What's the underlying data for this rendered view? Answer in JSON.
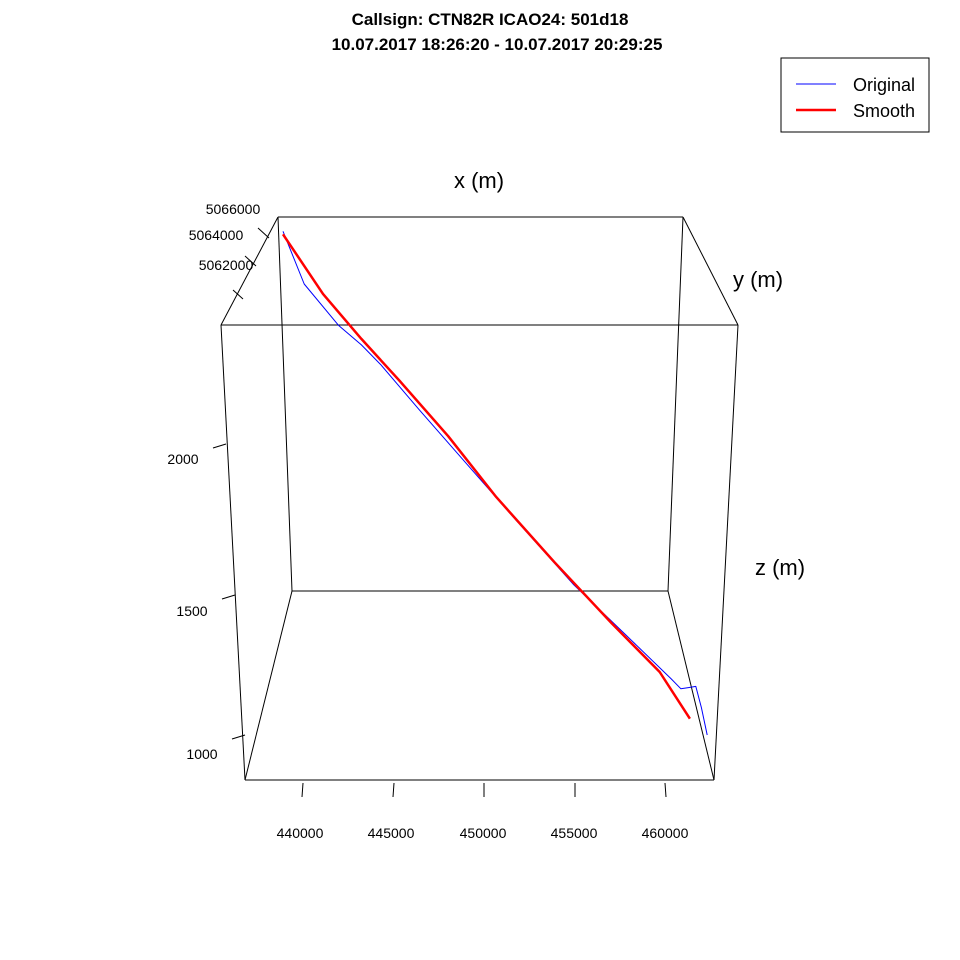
{
  "chart_data": {
    "type": "line",
    "title": "Callsign: CTN82R   ICAO24: 501d18",
    "subtitle": "10.07.2017 18:26:20 - 10.07.2017 20:29:25",
    "xlabel": "x (m)",
    "ylabel": "y (m)",
    "zlabel": "z (m)",
    "legend_position": "top-right",
    "x_ticks": [
      "440000",
      "445000",
      "450000",
      "455000",
      "460000"
    ],
    "y_ticks": [
      "5062000",
      "5064000",
      "5066000"
    ],
    "z_ticks": [
      "1000",
      "1500",
      "2000"
    ],
    "series": [
      {
        "name": "Original",
        "color": "#0000ff",
        "points": [
          {
            "x": 438900,
            "y": 5066000,
            "z": 2720
          },
          {
            "x": 440000,
            "y": 5065600,
            "z": 2550
          },
          {
            "x": 441800,
            "y": 5065100,
            "z": 2420
          },
          {
            "x": 443000,
            "y": 5064700,
            "z": 2360
          },
          {
            "x": 444000,
            "y": 5064300,
            "z": 2300
          },
          {
            "x": 446000,
            "y": 5063500,
            "z": 2160
          },
          {
            "x": 448500,
            "y": 5062600,
            "z": 1990
          },
          {
            "x": 451000,
            "y": 5061700,
            "z": 1820
          },
          {
            "x": 454000,
            "y": 5060700,
            "z": 1620
          },
          {
            "x": 457000,
            "y": 5059600,
            "z": 1450
          },
          {
            "x": 459100,
            "y": 5058900,
            "z": 1330
          },
          {
            "x": 459600,
            "y": 5058700,
            "z": 1300
          },
          {
            "x": 460000,
            "y": 5058600,
            "z": 1305
          },
          {
            "x": 460400,
            "y": 5058550,
            "z": 1310
          },
          {
            "x": 460700,
            "y": 5058500,
            "z": 1240
          },
          {
            "x": 461000,
            "y": 5058400,
            "z": 1150
          }
        ]
      },
      {
        "name": "Smooth",
        "color": "#ff0000",
        "points": [
          {
            "x": 438900,
            "y": 5066000,
            "z": 2710
          },
          {
            "x": 441000,
            "y": 5065400,
            "z": 2520
          },
          {
            "x": 443000,
            "y": 5064700,
            "z": 2380
          },
          {
            "x": 445000,
            "y": 5063900,
            "z": 2250
          },
          {
            "x": 447500,
            "y": 5063000,
            "z": 2080
          },
          {
            "x": 450000,
            "y": 5062100,
            "z": 1890
          },
          {
            "x": 453000,
            "y": 5061000,
            "z": 1690
          },
          {
            "x": 456000,
            "y": 5059900,
            "z": 1500
          },
          {
            "x": 458500,
            "y": 5059100,
            "z": 1350
          },
          {
            "x": 460100,
            "y": 5058700,
            "z": 1200
          }
        ]
      }
    ]
  }
}
